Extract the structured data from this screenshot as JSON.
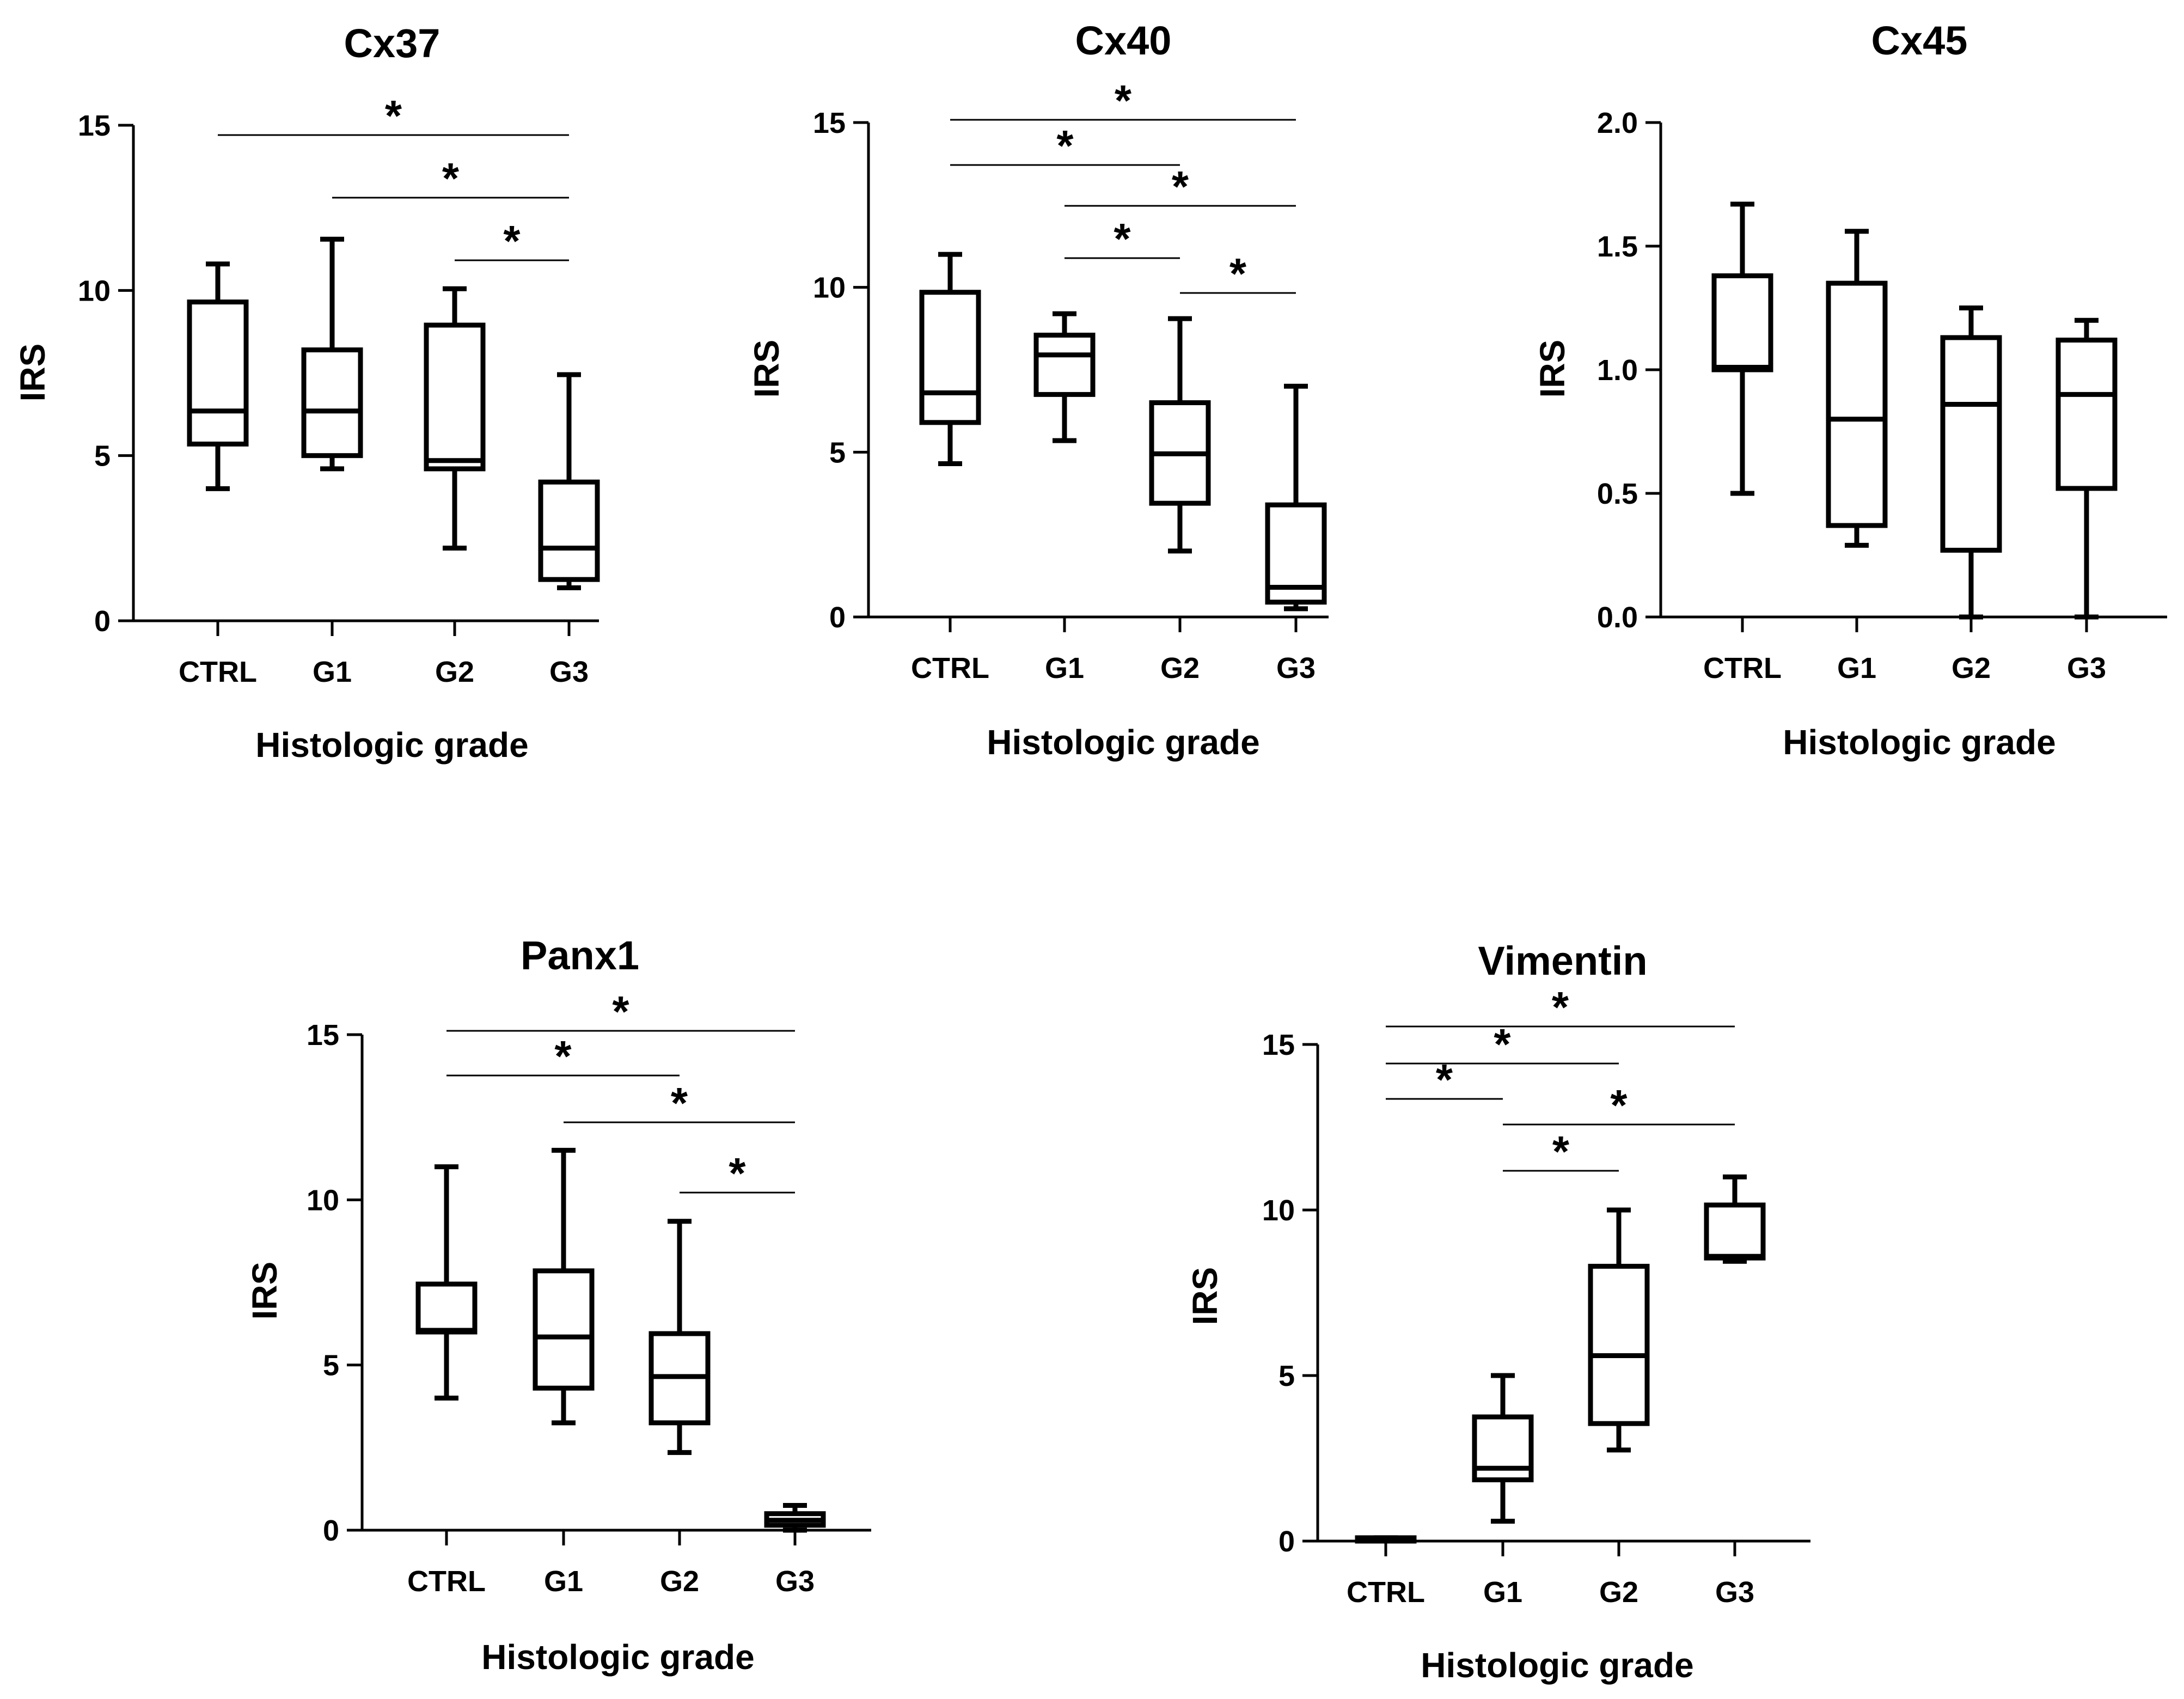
{
  "chart_data": [
    {
      "type": "box",
      "title": "Cx37",
      "xlabel": "Histologic grade",
      "ylabel": "IRS",
      "ylim": [
        0,
        15
      ],
      "yticks": [
        0,
        5,
        10,
        15
      ],
      "ytick_labels": [
        "0",
        "5",
        "10",
        "15"
      ],
      "categories": [
        "CTRL",
        "G1",
        "G2",
        "G3"
      ],
      "boxes": [
        {
          "category": "CTRL",
          "min": 4.0,
          "q1": 5.35,
          "median": 6.35,
          "q3": 9.65,
          "max": 10.8
        },
        {
          "category": "G1",
          "min": 4.6,
          "q1": 5.0,
          "median": 6.35,
          "q3": 8.2,
          "max": 11.55
        },
        {
          "category": "G2",
          "min": 2.2,
          "q1": 4.6,
          "median": 4.85,
          "q3": 8.95,
          "max": 10.05
        },
        {
          "category": "G3",
          "min": 1.0,
          "q1": 1.25,
          "median": 2.2,
          "q3": 4.2,
          "max": 7.45
        }
      ],
      "significance": [
        {
          "from": "CTRL",
          "to": "G3",
          "label": "*"
        },
        {
          "from": "G1",
          "to": "G3",
          "label": "*"
        },
        {
          "from": "G2",
          "to": "G3",
          "label": "*"
        }
      ]
    },
    {
      "type": "box",
      "title": "Cx40",
      "xlabel": "Histologic grade",
      "ylabel": "IRS",
      "ylim": [
        0,
        15
      ],
      "yticks": [
        0,
        5,
        10,
        15
      ],
      "ytick_labels": [
        "0",
        "5",
        "10",
        "15"
      ],
      "categories": [
        "CTRL",
        "G1",
        "G2",
        "G3"
      ],
      "boxes": [
        {
          "category": "CTRL",
          "min": 4.65,
          "q1": 5.9,
          "median": 6.8,
          "q3": 9.85,
          "max": 11.0
        },
        {
          "category": "G1",
          "min": 5.35,
          "q1": 6.75,
          "median": 7.95,
          "q3": 8.55,
          "max": 9.2
        },
        {
          "category": "G2",
          "min": 2.0,
          "q1": 3.45,
          "median": 4.95,
          "q3": 6.5,
          "max": 9.05
        },
        {
          "category": "G3",
          "min": 0.25,
          "q1": 0.45,
          "median": 0.9,
          "q3": 3.4,
          "max": 7.0
        }
      ],
      "significance": [
        {
          "from": "CTRL",
          "to": "G3",
          "label": "*"
        },
        {
          "from": "CTRL",
          "to": "G2",
          "label": "*"
        },
        {
          "from": "G1",
          "to": "G3",
          "label": "*"
        },
        {
          "from": "G1",
          "to": "G2",
          "label": "*"
        },
        {
          "from": "G2",
          "to": "G3",
          "label": "*"
        }
      ]
    },
    {
      "type": "box",
      "title": "Cx45",
      "xlabel": "Histologic grade",
      "ylabel": "IRS",
      "ylim": [
        0,
        2
      ],
      "yticks": [
        0,
        0.5,
        1,
        1.5,
        2
      ],
      "ytick_labels": [
        "0.0",
        "0.5",
        "1.0",
        "1.5",
        "2.0"
      ],
      "categories": [
        "CTRL",
        "G1",
        "G2",
        "G3"
      ],
      "boxes": [
        {
          "category": "CTRL",
          "min": 0.5,
          "q1": 1.0,
          "median": 1.01,
          "q3": 1.38,
          "max": 1.67
        },
        {
          "category": "G1",
          "min": 0.29,
          "q1": 0.37,
          "median": 0.8,
          "q3": 1.35,
          "max": 1.56
        },
        {
          "category": "G2",
          "min": 0.0,
          "q1": 0.27,
          "median": 0.86,
          "q3": 1.13,
          "max": 1.25
        },
        {
          "category": "G3",
          "min": 0.0,
          "q1": 0.52,
          "median": 0.9,
          "q3": 1.12,
          "max": 1.2
        }
      ],
      "significance": []
    },
    {
      "type": "box",
      "title": "Panx1",
      "xlabel": "Histologic grade",
      "ylabel": "IRS",
      "ylim": [
        0,
        15
      ],
      "yticks": [
        0,
        5,
        10,
        15
      ],
      "ytick_labels": [
        "0",
        "5",
        "10",
        "15"
      ],
      "categories": [
        "CTRL",
        "G1",
        "G2",
        "G3"
      ],
      "boxes": [
        {
          "category": "CTRL",
          "min": 4.0,
          "q1": 6.0,
          "median": 6.05,
          "q3": 7.45,
          "max": 11.0
        },
        {
          "category": "G1",
          "min": 3.25,
          "q1": 4.3,
          "median": 5.85,
          "q3": 7.85,
          "max": 11.5
        },
        {
          "category": "G2",
          "min": 2.35,
          "q1": 3.25,
          "median": 4.65,
          "q3": 5.95,
          "max": 9.35
        },
        {
          "category": "G3",
          "min": 0.0,
          "q1": 0.15,
          "median": 0.3,
          "q3": 0.5,
          "max": 0.75
        }
      ],
      "significance": [
        {
          "from": "CTRL",
          "to": "G3",
          "label": "*"
        },
        {
          "from": "CTRL",
          "to": "G2",
          "label": "*"
        },
        {
          "from": "G1",
          "to": "G3",
          "label": "*"
        },
        {
          "from": "G2",
          "to": "G3",
          "label": "*"
        }
      ]
    },
    {
      "type": "box",
      "title": "Vimentin",
      "xlabel": "Histologic grade",
      "ylabel": "IRS",
      "ylim": [
        0,
        15
      ],
      "yticks": [
        0,
        5,
        10,
        15
      ],
      "ytick_labels": [
        "0",
        "5",
        "10",
        "15"
      ],
      "categories": [
        "CTRL",
        "G1",
        "G2",
        "G3"
      ],
      "boxes": [
        {
          "category": "CTRL",
          "min": 0.0,
          "q1": 0.0,
          "median": 0.05,
          "q3": 0.1,
          "max": 0.1
        },
        {
          "category": "G1",
          "min": 0.6,
          "q1": 1.85,
          "median": 2.2,
          "q3": 3.75,
          "max": 5.0
        },
        {
          "category": "G2",
          "min": 2.75,
          "q1": 3.55,
          "median": 5.6,
          "q3": 8.3,
          "max": 10.0
        },
        {
          "category": "G3",
          "min": 8.45,
          "q1": 8.55,
          "median": 8.6,
          "q3": 10.15,
          "max": 11.0
        }
      ],
      "significance": [
        {
          "from": "CTRL",
          "to": "G3",
          "label": "*"
        },
        {
          "from": "CTRL",
          "to": "G2",
          "label": "*"
        },
        {
          "from": "CTRL",
          "to": "G1",
          "label": "*"
        },
        {
          "from": "G1",
          "to": "G3",
          "label": "*"
        },
        {
          "from": "G1",
          "to": "G2",
          "label": "*"
        }
      ]
    }
  ]
}
